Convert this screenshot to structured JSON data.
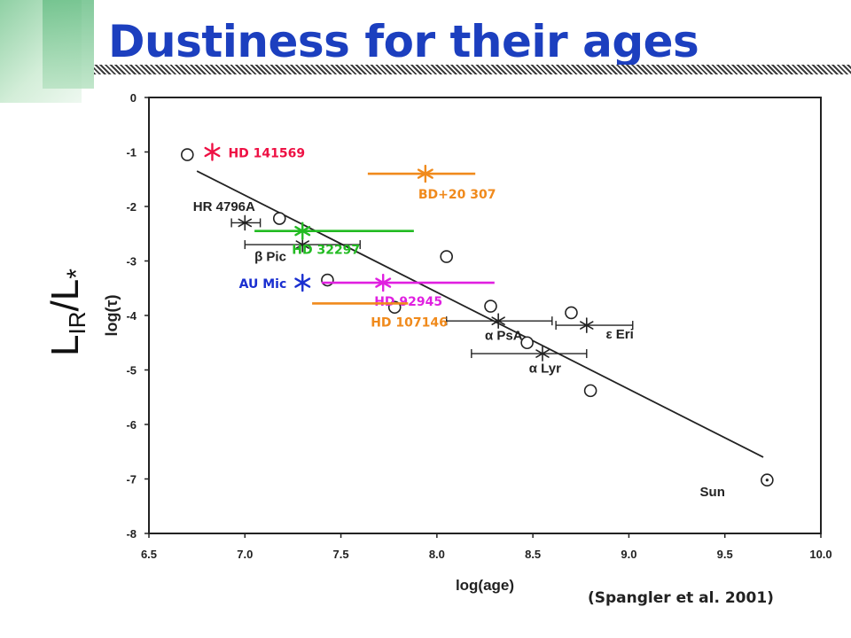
{
  "title": "Dustiness for their ages",
  "caption": "(Spangler et al. 2001)",
  "big_ylabel": {
    "main": "L",
    "sub": "IR",
    "slash": "/",
    "main2": "L",
    "star": "*"
  },
  "colors": {
    "title": "#1c3fbf",
    "red": "#ee1144",
    "orange": "#f08a1c",
    "green": "#22bb22",
    "magenta": "#e020e0",
    "blue": "#1a2fd0",
    "plot": "#222222"
  },
  "chart_data": {
    "type": "scatter",
    "xlabel": "log(age)",
    "ylabel": "log(τ)",
    "xlim": [
      6.5,
      10.0
    ],
    "ylim": [
      -8,
      0
    ],
    "xticks": [
      "6.5",
      "7.0",
      "7.5",
      "8.0",
      "8.5",
      "9.0",
      "9.5",
      "10.0"
    ],
    "yticks": [
      "0",
      "-1",
      "-2",
      "-3",
      "-4",
      "-5",
      "-6",
      "-7",
      "-8"
    ],
    "fit_line": {
      "x": [
        6.75,
        9.7
      ],
      "y": [
        -1.35,
        -6.6
      ]
    },
    "circles": [
      {
        "x": 6.7,
        "y": -1.05
      },
      {
        "x": 7.18,
        "y": -2.22
      },
      {
        "x": 7.43,
        "y": -3.35
      },
      {
        "x": 7.78,
        "y": -3.85
      },
      {
        "x": 8.05,
        "y": -2.92
      },
      {
        "x": 8.28,
        "y": -3.83
      },
      {
        "x": 8.47,
        "y": -4.5
      },
      {
        "x": 8.7,
        "y": -3.95
      },
      {
        "x": 8.8,
        "y": -5.38
      }
    ],
    "sun": {
      "x": 9.72,
      "y": -7.02
    },
    "labeled_points": [
      {
        "x": 7.0,
        "y": -2.3,
        "xerr": [
          6.93,
          7.08
        ]
      },
      {
        "x": 7.3,
        "y": -2.7,
        "xerr": [
          7.0,
          7.6
        ]
      },
      {
        "x": 8.32,
        "y": -4.1,
        "xerr": [
          8.05,
          8.6
        ]
      },
      {
        "x": 8.55,
        "y": -4.7,
        "xerr": [
          8.18,
          8.78
        ]
      },
      {
        "x": 8.78,
        "y": -4.18,
        "xerr": [
          8.62,
          9.02
        ]
      }
    ],
    "point_labels": [
      {
        "text": "HR 4796A",
        "x": 6.73,
        "y": -2.08
      },
      {
        "text": "β Pic",
        "x": 7.05,
        "y": -3.0
      },
      {
        "text": "α PsA",
        "x": 8.25,
        "y": -4.45
      },
      {
        "text": "α Lyr",
        "x": 8.48,
        "y": -5.05
      },
      {
        "text": "ε Eri",
        "x": 8.88,
        "y": -4.42
      },
      {
        "text": "Sun",
        "x": 9.37,
        "y": -7.32
      }
    ],
    "overlay_stars": [
      {
        "label": "HD 141569",
        "color": "red",
        "x": 6.83,
        "y": -1.0,
        "xerr": null
      },
      {
        "label": "BD+20 307",
        "color": "orange",
        "x": 7.94,
        "y": -1.4,
        "xerr": [
          7.64,
          8.2
        ]
      },
      {
        "label": "HD 32297",
        "color": "green",
        "x": 7.3,
        "y": -2.45,
        "xerr": [
          7.05,
          7.88
        ]
      },
      {
        "label": "AU Mic",
        "color": "blue",
        "x": 7.3,
        "y": -3.4,
        "xerr": null
      },
      {
        "label": "HD 92945",
        "color": "magenta",
        "x": 7.72,
        "y": -3.4,
        "xerr": [
          7.4,
          8.3
        ]
      },
      {
        "label": "HD 107146",
        "color": "orange",
        "x": 7.72,
        "y": -3.78,
        "xerr": [
          7.35,
          7.85
        ]
      }
    ]
  }
}
